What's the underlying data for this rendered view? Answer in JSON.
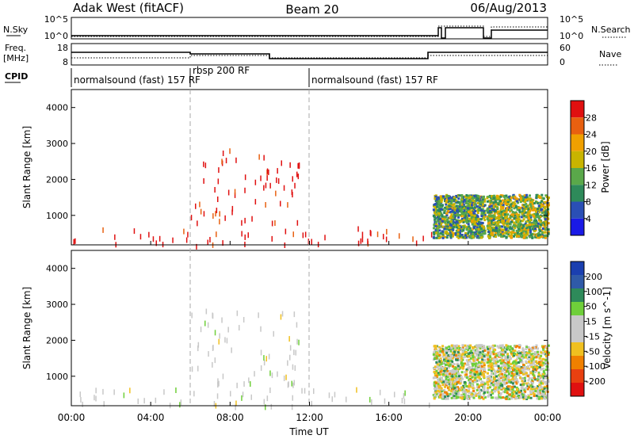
{
  "header": {
    "title_left": "Adak West (fitACF)",
    "title_center": "Beam 20",
    "title_right": "06/Aug/2013"
  },
  "status_panels": {
    "nsky_label": "N.Sky",
    "nsky_ticks": [
      "10^5",
      "10^0"
    ],
    "nsearch_label": "N.Search",
    "nsearch_ticks": [
      "10^5",
      "10^0"
    ],
    "freq_label": "Freq.",
    "freq_unit": "[MHz]",
    "freq_ticks": [
      "18",
      "8"
    ],
    "nave_label": "Nave",
    "nave_ticks": [
      "60",
      "0"
    ],
    "cpid_label": "CPID",
    "cpid_segments": [
      {
        "label": "normalsound (fast) 157 RF",
        "start": 0.0,
        "end": 6.0
      },
      {
        "label": "rbsp 200 RF",
        "start": 6.0,
        "end": 12.0
      },
      {
        "label": "normalsound (fast) 157 RF",
        "start": 12.0,
        "end": 24.0
      }
    ]
  },
  "colors": {
    "power_scale": [
      "#1a1ae6",
      "#2a4fb5",
      "#2e8a5a",
      "#5aa84a",
      "#c8b400",
      "#f0a000",
      "#e86010",
      "#e01010"
    ],
    "velocity_scale": [
      "#1a3fb0",
      "#2f5aa8",
      "#2e8a5a",
      "#6fcf3a",
      "#c8c8c8",
      "#c8c8c8",
      "#f0c020",
      "#f08000",
      "#e84010",
      "#e01010"
    ]
  },
  "chart_data": [
    {
      "type": "heatmap",
      "panel": "power",
      "ylabel": "Slant Range [km]",
      "colorbar_label": "Power [dB]",
      "colorbar_ticks": [
        "28",
        "24",
        "20",
        "16",
        "12",
        "8",
        "4"
      ],
      "y_ticks": [
        "4000",
        "3000",
        "2000",
        "1000"
      ],
      "xlim": [
        0,
        24
      ],
      "ylim": [
        180,
        4500
      ],
      "value_range": [
        0,
        30
      ],
      "regions": [
        {
          "desc": "near-range sporadic",
          "x": [
            0,
            18.2
          ],
          "y": [
            200,
            700
          ],
          "value": 28
        },
        {
          "desc": "rbsp scatter",
          "x": [
            6,
            11.5
          ],
          "y": [
            800,
            2900
          ],
          "value": 28
        },
        {
          "desc": "late band A",
          "x": [
            18.2,
            20.8
          ],
          "y": [
            400,
            1600
          ],
          "value": 12
        },
        {
          "desc": "late band B",
          "x": [
            20.9,
            24
          ],
          "y": [
            400,
            1600
          ],
          "value": 14
        }
      ]
    },
    {
      "type": "heatmap",
      "panel": "velocity",
      "ylabel": "Slant Range [km]",
      "colorbar_label": "Velocity [m s^-1]",
      "colorbar_ticks": [
        "200",
        "100",
        "50",
        "15",
        "-15",
        "-50",
        "-100",
        "-200"
      ],
      "y_ticks": [
        "4000",
        "3000",
        "2000",
        "1000"
      ],
      "xlim": [
        0,
        24
      ],
      "ylim": [
        180,
        4500
      ],
      "value_range": [
        -250,
        250
      ],
      "regions": [
        {
          "desc": "near-range sporadic",
          "x": [
            0,
            18.2
          ],
          "y": [
            200,
            700
          ],
          "value": 0
        },
        {
          "desc": "rbsp scatter",
          "x": [
            6,
            11.5
          ],
          "y": [
            800,
            2900
          ],
          "value": 0
        },
        {
          "desc": "late band A",
          "x": [
            18.2,
            20.8
          ],
          "y": [
            400,
            1900
          ],
          "value": 0
        },
        {
          "desc": "late band B",
          "x": [
            20.9,
            24
          ],
          "y": [
            400,
            1900
          ],
          "value": 0
        }
      ]
    }
  ],
  "x_axis": {
    "label": "Time UT",
    "ticks": [
      "00:00",
      "04:00",
      "08:00",
      "12:00",
      "16:00",
      "20:00",
      "00:00"
    ],
    "tick_hours": [
      0,
      4,
      8,
      12,
      16,
      20,
      24
    ]
  }
}
